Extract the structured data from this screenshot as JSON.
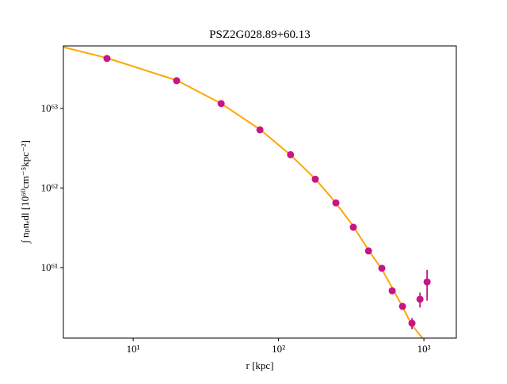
{
  "chart_data": {
    "type": "scatter",
    "title": "PSZ2G028.89+60.13",
    "x_label": "r [kpc]",
    "y_label": "∫ nₚnₑdl [10⁶⁰cm⁻⁵kpc⁻²]",
    "log_x": true,
    "log_y": true,
    "xlim": [
      3.31,
      1671
    ],
    "ylim": [
      1.3e+60,
      6.1e+63
    ],
    "xticks": [
      {
        "value": 10,
        "label": "10¹"
      },
      {
        "value": 100,
        "label": "10²"
      },
      {
        "value": 1000,
        "label": "10³"
      }
    ],
    "yticks": [
      {
        "value": 1e+61,
        "label": "10⁶¹"
      },
      {
        "value": 1e+62,
        "label": "10⁶²"
      },
      {
        "value": 1e+63,
        "label": "10⁶³"
      }
    ],
    "series": [
      {
        "kind": "points",
        "color": "#c71585",
        "x": [
          6.6,
          19.9,
          40.3,
          74.5,
          121,
          179,
          248,
          327,
          416,
          514,
          605,
          713,
          828,
          940,
          1052
        ],
        "values": [
          4.24e+63,
          2.23e+63,
          1.15e+63,
          5.38e+62,
          2.62e+62,
          1.29e+62,
          6.5e+61,
          3.21e+61,
          1.62e+61,
          9.8e+60,
          5.1e+60,
          3.25e+60,
          2e+60,
          4e+60,
          6.6e+60
        ],
        "errors": [
          4e+61,
          3e+61,
          1.5e+61,
          8e+60,
          4e+60,
          2e+60,
          1e+60,
          6e+59,
          4e+59,
          3e+59,
          2e+59,
          1.5e+59,
          3.2e+59,
          8.5e+59,
          2.75e+60
        ]
      },
      {
        "kind": "line",
        "color": "#ffa500",
        "x": [
          3.31,
          6.6,
          20,
          40,
          75,
          121,
          179,
          248,
          327,
          416,
          514,
          605,
          713,
          828,
          975
        ],
        "values": [
          5.9e+63,
          4.3e+63,
          2.25e+63,
          1.16e+63,
          5.4e+62,
          2.6e+62,
          1.3e+62,
          6.5e+61,
          3.3e+61,
          1.65e+61,
          9.5e+60,
          5.6e+60,
          3.2e+60,
          1.9e+60,
          1.3e+60
        ]
      }
    ]
  }
}
